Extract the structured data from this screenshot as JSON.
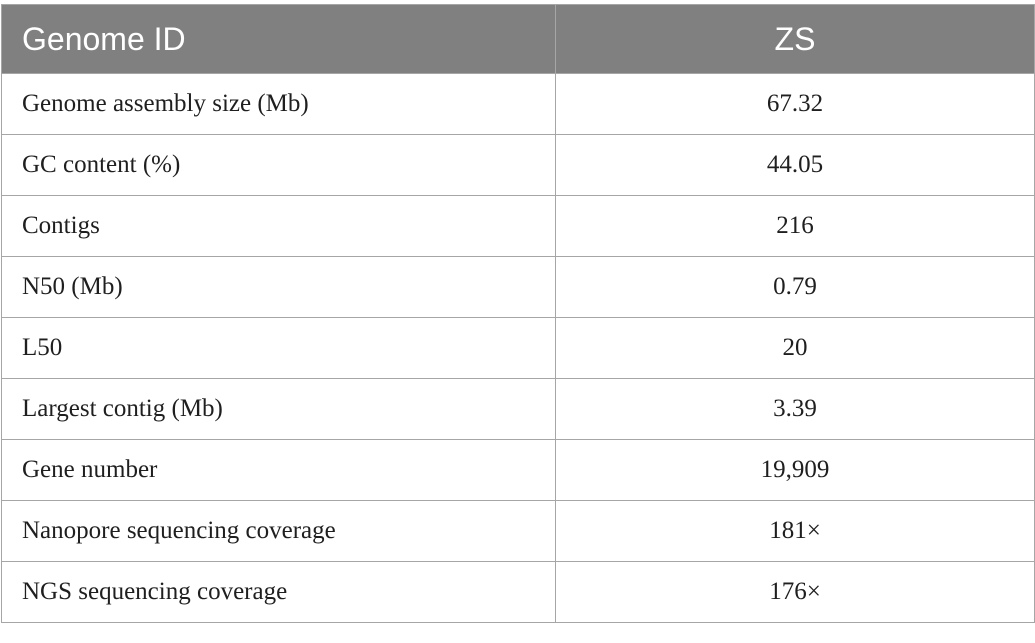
{
  "table": {
    "headers": [
      "Genome ID",
      "ZS"
    ],
    "rows": [
      {
        "label": "Genome assembly size (Mb)",
        "value": "67.32"
      },
      {
        "label": "GC content (%)",
        "value": "44.05"
      },
      {
        "label": "Contigs",
        "value": "216"
      },
      {
        "label": "N50 (Mb)",
        "value": "0.79"
      },
      {
        "label": "L50",
        "value": "20"
      },
      {
        "label": "Largest contig (Mb)",
        "value": "3.39"
      },
      {
        "label": "Gene number",
        "value": "19,909"
      },
      {
        "label": "Nanopore sequencing coverage",
        "value": "181×"
      },
      {
        "label": "NGS sequencing coverage",
        "value": "176×"
      }
    ]
  }
}
